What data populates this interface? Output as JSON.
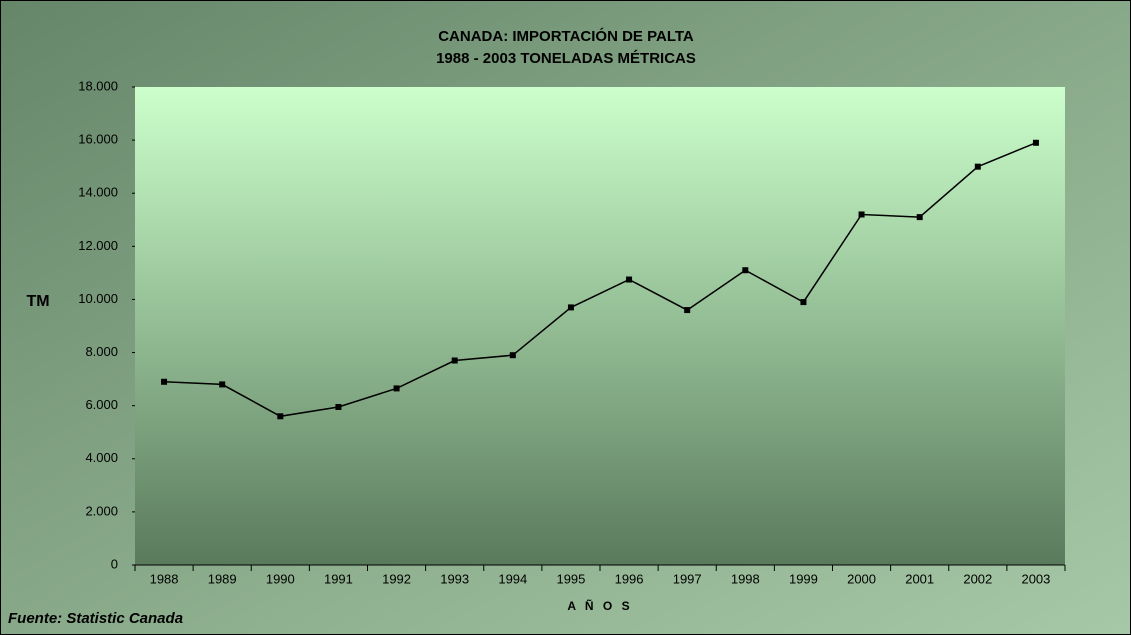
{
  "chart_data": {
    "type": "line",
    "title": "CANADA: IMPORTACIÓN DE PALTA",
    "subtitle": "1988 - 2003 TONELADAS MÉTRICAS",
    "y_label": "TM",
    "x_label": "A Ñ O S",
    "source": "Fuente: Statistic Canada",
    "categories": [
      "1988",
      "1989",
      "1990",
      "1991",
      "1992",
      "1993",
      "1994",
      "1995",
      "1996",
      "1997",
      "1998",
      "1999",
      "2000",
      "2001",
      "2002",
      "2003"
    ],
    "series": [
      {
        "name": "Importación",
        "color": "#000000",
        "values": [
          6900,
          6800,
          5600,
          5950,
          6650,
          7700,
          7900,
          9700,
          10750,
          9600,
          11100,
          9900,
          13200,
          13100,
          15000,
          15900
        ]
      }
    ],
    "ylim": [
      0,
      18000
    ],
    "yticks": [
      0,
      {
        "value": 2000,
        "label": "2.000"
      },
      {
        "value": 4000,
        "label": "4.000"
      },
      {
        "value": 6000,
        "label": "6.000"
      },
      {
        "value": 8000,
        "label": "8.000"
      },
      {
        "value": 10000,
        "label": "10.000"
      },
      {
        "value": 12000,
        "label": "12.000"
      },
      {
        "value": 14000,
        "label": "14.000"
      },
      {
        "value": 16000,
        "label": "16.000"
      },
      {
        "value": 18000,
        "label": "18.000"
      }
    ],
    "grid": false
  }
}
